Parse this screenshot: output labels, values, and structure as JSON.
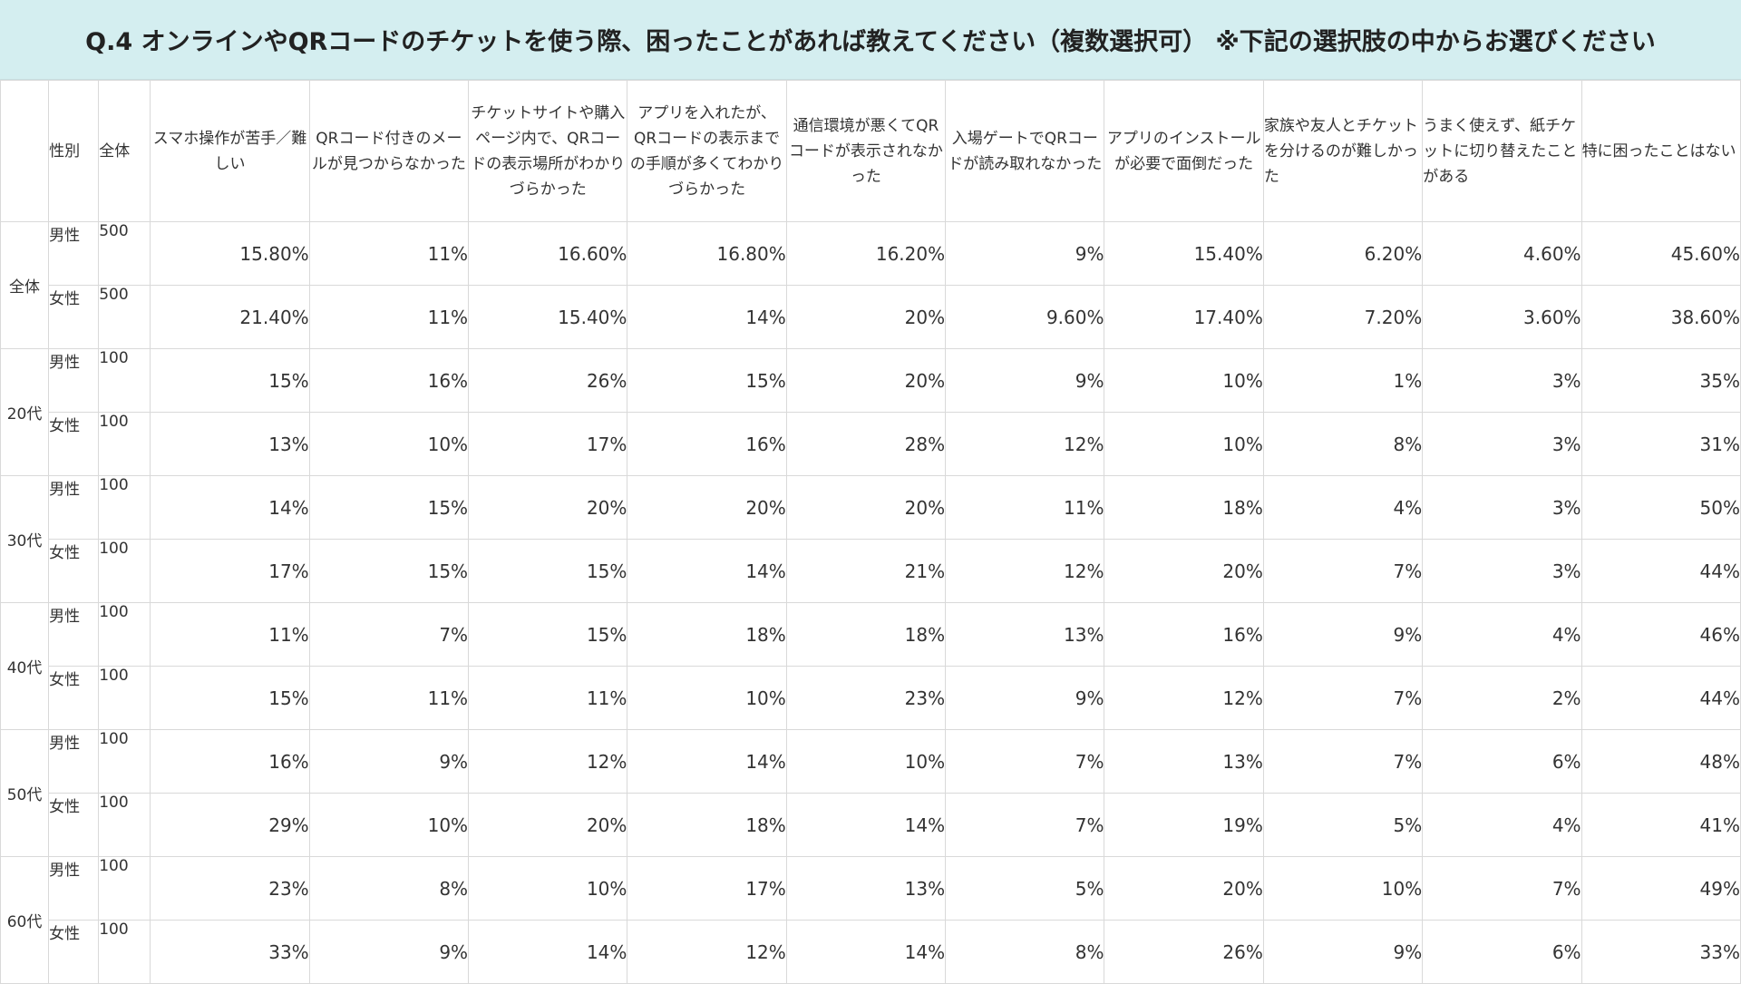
{
  "title": "Q.4 オンラインやQRコードのチケットを使う際、困ったことがあれば教えてください（複数選択可） ※下記の選択肢の中からお選びください",
  "chart_data": {
    "type": "table",
    "title": "Q.4 オンラインやQRコードのチケットを使う際、困ったことがあれば教えてください（複数選択可） ※下記の選択肢の中からお選びください",
    "header": {
      "group": "",
      "gender": "性別",
      "n": "全体"
    },
    "columns": [
      "スマホ操作が苦手／難しい",
      "QRコード付きのメールが見つからなかった",
      "チケットサイトや購入ページ内で、QRコードの表示場所がわかりづらかった",
      "アプリを入れたが、QRコードの表示までの手順が多くてわかりづらかった",
      "通信環境が悪くてQRコードが表示されなかった",
      "入場ゲートでQRコードが読み取れなかった",
      "アプリのインストールが必要で面倒だった",
      "家族や友人とチケットを分けるのが難しかった",
      "うまく使えず、紙チケットに切り替えたことがある",
      "特に困ったことはない"
    ],
    "groups": [
      {
        "label": "全体",
        "rows": [
          {
            "gender": "男性",
            "n": "500",
            "values": [
              "15.80%",
              "11%",
              "16.60%",
              "16.80%",
              "16.20%",
              "9%",
              "15.40%",
              "6.20%",
              "4.60%",
              "45.60%"
            ]
          },
          {
            "gender": "女性",
            "n": "500",
            "values": [
              "21.40%",
              "11%",
              "15.40%",
              "14%",
              "20%",
              "9.60%",
              "17.40%",
              "7.20%",
              "3.60%",
              "38.60%"
            ]
          }
        ]
      },
      {
        "label": "20代",
        "rows": [
          {
            "gender": "男性",
            "n": "100",
            "values": [
              "15%",
              "16%",
              "26%",
              "15%",
              "20%",
              "9%",
              "10%",
              "1%",
              "3%",
              "35%"
            ]
          },
          {
            "gender": "女性",
            "n": "100",
            "values": [
              "13%",
              "10%",
              "17%",
              "16%",
              "28%",
              "12%",
              "10%",
              "8%",
              "3%",
              "31%"
            ]
          }
        ]
      },
      {
        "label": "30代",
        "rows": [
          {
            "gender": "男性",
            "n": "100",
            "values": [
              "14%",
              "15%",
              "20%",
              "20%",
              "20%",
              "11%",
              "18%",
              "4%",
              "3%",
              "50%"
            ]
          },
          {
            "gender": "女性",
            "n": "100",
            "values": [
              "17%",
              "15%",
              "15%",
              "14%",
              "21%",
              "12%",
              "20%",
              "7%",
              "3%",
              "44%"
            ]
          }
        ]
      },
      {
        "label": "40代",
        "rows": [
          {
            "gender": "男性",
            "n": "100",
            "values": [
              "11%",
              "7%",
              "15%",
              "18%",
              "18%",
              "13%",
              "16%",
              "9%",
              "4%",
              "46%"
            ]
          },
          {
            "gender": "女性",
            "n": "100",
            "values": [
              "15%",
              "11%",
              "11%",
              "10%",
              "23%",
              "9%",
              "12%",
              "7%",
              "2%",
              "44%"
            ]
          }
        ]
      },
      {
        "label": "50代",
        "rows": [
          {
            "gender": "男性",
            "n": "100",
            "values": [
              "16%",
              "9%",
              "12%",
              "14%",
              "10%",
              "7%",
              "13%",
              "7%",
              "6%",
              "48%"
            ]
          },
          {
            "gender": "女性",
            "n": "100",
            "values": [
              "29%",
              "10%",
              "20%",
              "18%",
              "14%",
              "7%",
              "19%",
              "5%",
              "4%",
              "41%"
            ]
          }
        ]
      },
      {
        "label": "60代",
        "rows": [
          {
            "gender": "男性",
            "n": "100",
            "values": [
              "23%",
              "8%",
              "10%",
              "17%",
              "13%",
              "5%",
              "20%",
              "10%",
              "7%",
              "49%"
            ]
          },
          {
            "gender": "女性",
            "n": "100",
            "values": [
              "33%",
              "9%",
              "14%",
              "12%",
              "14%",
              "8%",
              "26%",
              "9%",
              "6%",
              "33%"
            ]
          }
        ]
      }
    ]
  }
}
